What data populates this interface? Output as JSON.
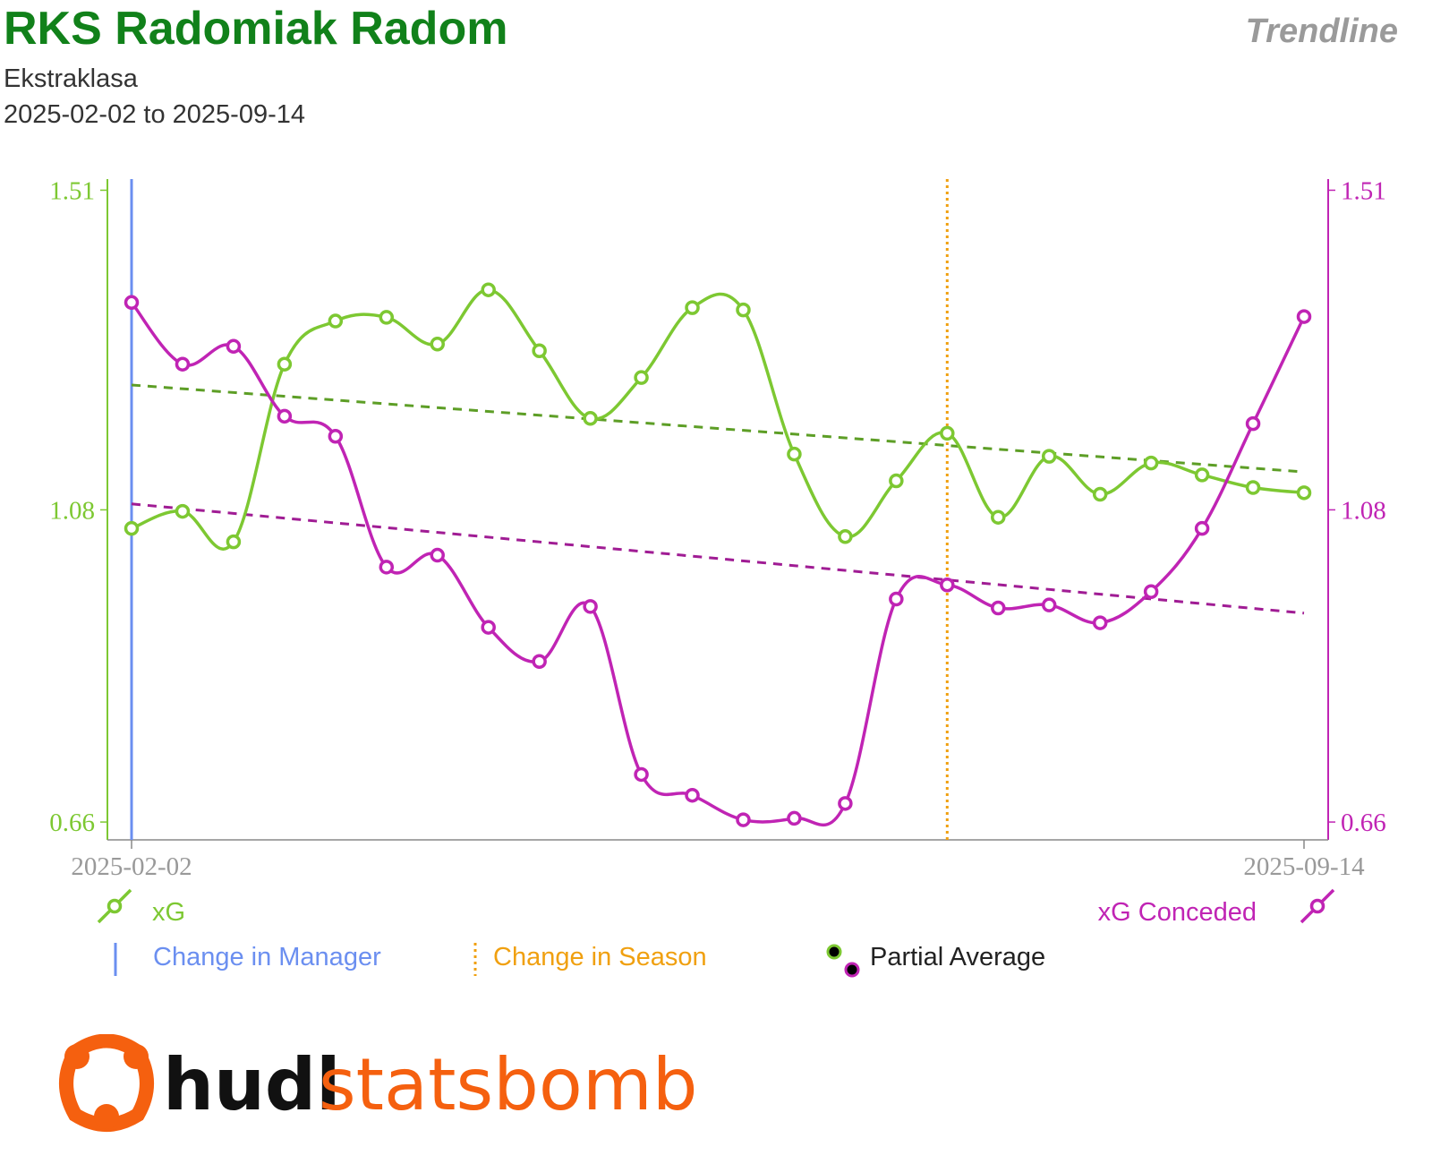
{
  "header": {
    "title": "RKS Radomiak Radom",
    "competition": "Ekstraklasa",
    "date_range": "2025-02-02 to 2025-09-14",
    "brand_label": "Trendline"
  },
  "colors": {
    "title": "#11811a",
    "xg": "#7dc832",
    "xg_trend": "#5d9e26",
    "xg_conceded": "#c024b4",
    "xg_conceded_trend": "#a01c94",
    "manager_change": "#6b8ff0",
    "season_change": "#f0a010",
    "axis": "#888888",
    "logo_orange": "#f5600f",
    "logo_black": "#111111"
  },
  "legend": {
    "xg": "xG",
    "xg_conceded": "xG Conceded",
    "manager_change": "Change in Manager",
    "season_change": "Change in Season",
    "partial_average": "Partial Average"
  },
  "logo": {
    "part1": "hudl",
    "part2": "statsbomb",
    "icon": "hudl-logo-icon"
  },
  "chart_data": {
    "type": "line",
    "x_ticks": [
      "2025-02-02",
      "2025-09-14"
    ],
    "ylim": [
      0.636,
      1.525
    ],
    "y_ticks": [
      0.66,
      1.08,
      1.51
    ],
    "dual_axis": true,
    "grid": false,
    "match_count": 24,
    "series": [
      {
        "name": "xG",
        "axis": "left",
        "values": [
          1.055,
          1.078,
          1.037,
          1.276,
          1.334,
          1.339,
          1.303,
          1.376,
          1.294,
          1.203,
          1.258,
          1.352,
          1.349,
          1.155,
          1.044,
          1.119,
          1.183,
          1.07,
          1.152,
          1.101,
          1.143,
          1.127,
          1.11,
          1.103
        ]
      },
      {
        "name": "xG Conceded",
        "axis": "left",
        "values": [
          1.359,
          1.276,
          1.3,
          1.206,
          1.179,
          1.003,
          1.019,
          0.922,
          0.876,
          0.95,
          0.724,
          0.696,
          0.663,
          0.665,
          0.685,
          0.96,
          0.979,
          0.948,
          0.952,
          0.928,
          0.97,
          1.055,
          1.196,
          1.34
        ]
      }
    ],
    "partial_average": [
      {
        "series": "xG",
        "start": 1.248,
        "end": 1.131
      },
      {
        "series": "xG Conceded",
        "start": 1.088,
        "end": 0.941
      }
    ],
    "markers": [
      {
        "label": "Change in Manager",
        "match_index": 0
      },
      {
        "label": "Change in Season",
        "match_index": 16
      }
    ]
  }
}
